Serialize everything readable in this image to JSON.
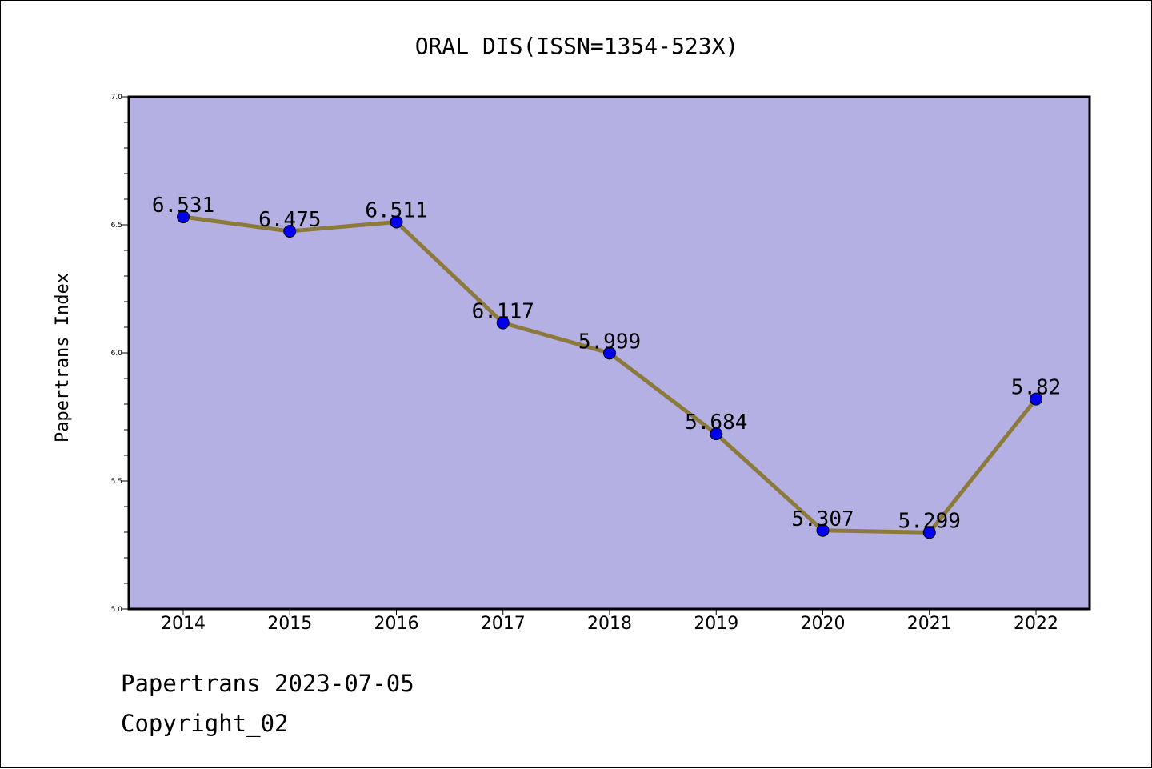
{
  "chart_data": {
    "type": "line",
    "title": "ORAL DIS(ISSN=1354-523X)",
    "ylabel": "Papertrans Index",
    "xlabel": "",
    "categories": [
      "2014",
      "2015",
      "2016",
      "2017",
      "2018",
      "2019",
      "2020",
      "2021",
      "2022"
    ],
    "values": [
      6.531,
      6.475,
      6.511,
      6.117,
      5.999,
      5.684,
      5.307,
      5.299,
      5.82
    ],
    "data_labels": [
      "6.531",
      "6.475",
      "6.511",
      "6.117",
      "5.999",
      "5.684",
      "5.307",
      "5.299",
      "5.82"
    ],
    "ylim": [
      5.0,
      7.0
    ],
    "yticks": [
      "5.0",
      "5.5",
      "6.0",
      "6.5",
      "7.0"
    ],
    "grid": false,
    "colors": {
      "plot_background": "#b5b0e3",
      "line": "#8c7a3c",
      "marker": "#0000ee"
    }
  },
  "footer": {
    "line1": "Papertrans 2023-07-05",
    "line2": "Copyright_02"
  }
}
